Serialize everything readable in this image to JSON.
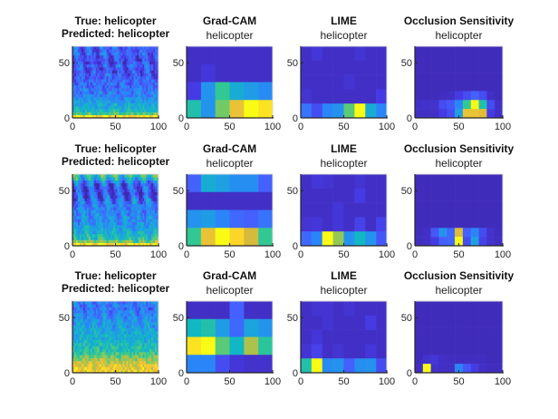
{
  "figure": {
    "rows": 3,
    "columns": [
      "Spectrogram",
      "Grad-CAM",
      "LIME",
      "Occlusion Sensitivity"
    ]
  },
  "chart_data": {
    "type": "heatmap",
    "colormap": "parula",
    "xlim": [
      0,
      100
    ],
    "ylim": [
      0,
      65
    ],
    "xticks": [
      0,
      50,
      100
    ],
    "yticks": [
      0,
      50
    ],
    "rows": [
      {
        "spectrogram": {
          "title_line1": "True: helicopter",
          "title_line2": "Predicted: helicopter",
          "profile": [
            0.92,
            0.62,
            0.5,
            0.45,
            0.42,
            0.38,
            0.33,
            0.3,
            0.28,
            0.26,
            0.24,
            0.22,
            0.2,
            0.19,
            0.18,
            0.17,
            0.18,
            0.2,
            0.15,
            0.14,
            0.16,
            0.22,
            0.18,
            0.2
          ],
          "periodic": 0.1
        },
        "gradcam": {
          "title": "Grad-CAM",
          "subtitle": "helicopter",
          "grid": [
            [
              0.05,
              0.05,
              0.05,
              0.05,
              0.05,
              0.05
            ],
            [
              0.05,
              0.08,
              0.05,
              0.05,
              0.05,
              0.05
            ],
            [
              0.1,
              0.35,
              0.6,
              0.45,
              0.38,
              0.32
            ],
            [
              0.55,
              0.35,
              0.68,
              0.85,
              1.0,
              0.95
            ]
          ]
        },
        "lime": {
          "title": "LIME",
          "subtitle": "helicopter",
          "grid": [
            [
              0.05,
              0.08,
              0.05,
              0.05,
              0.05,
              0.07,
              0.05,
              0.05
            ],
            [
              0.05,
              0.05,
              0.05,
              0.05,
              0.05,
              0.05,
              0.05,
              0.05
            ],
            [
              0.05,
              0.05,
              0.05,
              0.05,
              0.07,
              0.05,
              0.05,
              0.05
            ],
            [
              0.07,
              0.05,
              0.05,
              0.05,
              0.05,
              0.05,
              0.05,
              0.1
            ],
            [
              0.25,
              0.15,
              0.3,
              0.35,
              0.65,
              1.0,
              0.45,
              0.3
            ]
          ]
        },
        "occlusion": {
          "title": "Occlusion Sensitivity",
          "subtitle": "helicopter",
          "grid": [
            [
              0.03,
              0.03,
              0.03,
              0.03,
              0.03,
              0.03,
              0.03,
              0.03,
              0.03,
              0.03,
              0.03
            ],
            [
              0.03,
              0.03,
              0.03,
              0.03,
              0.03,
              0.03,
              0.03,
              0.03,
              0.03,
              0.03,
              0.03
            ],
            [
              0.03,
              0.03,
              0.03,
              0.03,
              0.03,
              0.03,
              0.03,
              0.03,
              0.03,
              0.03,
              0.03
            ],
            [
              0.03,
              0.03,
              0.03,
              0.03,
              0.03,
              0.03,
              0.03,
              0.03,
              0.03,
              0.03,
              0.03
            ],
            [
              0.03,
              0.03,
              0.03,
              0.03,
              0.03,
              0.03,
              0.03,
              0.03,
              0.03,
              0.03,
              0.03
            ],
            [
              0.03,
              0.03,
              0.03,
              0.04,
              0.05,
              0.1,
              0.15,
              0.2,
              0.15,
              0.05,
              0.03
            ],
            [
              0.05,
              0.06,
              0.06,
              0.15,
              0.18,
              0.3,
              0.6,
              1.0,
              0.55,
              0.15,
              0.05
            ],
            [
              0.05,
              0.05,
              0.05,
              0.1,
              0.15,
              0.4,
              0.85,
              0.85,
              0.82,
              0.1,
              0.05
            ]
          ]
        }
      },
      {
        "spectrogram": {
          "title_line1": "True: helicopter",
          "title_line2": "Predicted: helicopter",
          "profile": [
            0.95,
            0.68,
            0.55,
            0.5,
            0.45,
            0.42,
            0.38,
            0.36,
            0.34,
            0.33,
            0.32,
            0.3,
            0.3,
            0.28,
            0.26,
            0.24,
            0.18,
            0.16,
            0.15,
            0.17,
            0.2,
            0.3,
            0.45,
            0.55
          ],
          "periodic": 0.18
        },
        "gradcam": {
          "title": "Grad-CAM",
          "subtitle": "helicopter",
          "grid": [
            [
              0.2,
              0.45,
              0.4,
              0.33,
              0.33,
              0.2
            ],
            [
              0.05,
              0.05,
              0.05,
              0.05,
              0.05,
              0.05
            ],
            [
              0.35,
              0.38,
              0.3,
              0.22,
              0.2,
              0.25
            ],
            [
              0.6,
              0.85,
              1.0,
              0.92,
              0.8,
              0.6
            ]
          ]
        },
        "lime": {
          "title": "LIME",
          "subtitle": "helicopter",
          "grid": [
            [
              0.05,
              0.08,
              0.07,
              0.05,
              0.05,
              0.07,
              0.05,
              0.05
            ],
            [
              0.05,
              0.05,
              0.05,
              0.05,
              0.05,
              0.1,
              0.05,
              0.05
            ],
            [
              0.05,
              0.05,
              0.05,
              0.08,
              0.05,
              0.05,
              0.05,
              0.05
            ],
            [
              0.07,
              0.08,
              0.05,
              0.08,
              0.05,
              0.12,
              0.05,
              0.12
            ],
            [
              0.22,
              0.3,
              1.0,
              0.72,
              0.35,
              0.5,
              0.35,
              0.18
            ]
          ]
        },
        "occlusion": {
          "title": "Occlusion Sensitivity",
          "subtitle": "helicopter",
          "grid": [
            [
              0.03,
              0.03,
              0.03,
              0.03,
              0.03,
              0.03,
              0.03,
              0.03,
              0.03,
              0.03,
              0.03
            ],
            [
              0.03,
              0.03,
              0.03,
              0.03,
              0.03,
              0.03,
              0.03,
              0.03,
              0.03,
              0.03,
              0.03
            ],
            [
              0.03,
              0.03,
              0.03,
              0.03,
              0.03,
              0.03,
              0.03,
              0.03,
              0.03,
              0.03,
              0.03
            ],
            [
              0.03,
              0.03,
              0.03,
              0.03,
              0.03,
              0.03,
              0.03,
              0.03,
              0.03,
              0.03,
              0.03
            ],
            [
              0.03,
              0.03,
              0.03,
              0.03,
              0.03,
              0.03,
              0.03,
              0.03,
              0.03,
              0.03,
              0.03
            ],
            [
              0.03,
              0.03,
              0.03,
              0.03,
              0.03,
              0.03,
              0.03,
              0.03,
              0.03,
              0.03,
              0.03
            ],
            [
              0.04,
              0.05,
              0.18,
              0.35,
              0.22,
              0.82,
              0.2,
              0.3,
              0.15,
              0.06,
              0.04
            ],
            [
              0.04,
              0.05,
              0.1,
              0.2,
              0.22,
              1.0,
              0.15,
              0.4,
              0.12,
              0.06,
              0.04
            ]
          ]
        }
      },
      {
        "spectrogram": {
          "title_line1": "True: helicopter",
          "title_line2": "Predicted: helicopter",
          "profile": [
            0.88,
            0.85,
            0.82,
            0.78,
            0.72,
            0.65,
            0.6,
            0.55,
            0.52,
            0.5,
            0.48,
            0.46,
            0.45,
            0.44,
            0.42,
            0.4,
            0.38,
            0.36,
            0.34,
            0.3,
            0.28,
            0.26,
            0.27,
            0.28
          ],
          "periodic": 0.06
        },
        "gradcam": {
          "title": "Grad-CAM",
          "subtitle": "helicopter",
          "grid": [
            [
              0.05,
              0.05,
              0.05,
              0.2,
              0.05,
              0.05
            ],
            [
              0.5,
              0.55,
              0.38,
              0.22,
              0.42,
              0.35
            ],
            [
              0.95,
              1.0,
              0.65,
              0.5,
              0.75,
              0.58
            ],
            [
              0.3,
              0.3,
              0.15,
              0.08,
              0.06,
              0.06
            ]
          ]
        },
        "lime": {
          "title": "LIME",
          "subtitle": "helicopter",
          "grid": [
            [
              0.05,
              0.07,
              0.07,
              0.05,
              0.07,
              0.05,
              0.05,
              0.05
            ],
            [
              0.05,
              0.05,
              0.07,
              0.05,
              0.05,
              0.05,
              0.1,
              0.05
            ],
            [
              0.05,
              0.08,
              0.05,
              0.05,
              0.05,
              0.05,
              0.05,
              0.05
            ],
            [
              0.07,
              0.12,
              0.05,
              0.07,
              0.05,
              0.05,
              0.08,
              0.05
            ],
            [
              0.55,
              1.0,
              0.32,
              0.35,
              0.2,
              0.33,
              0.35,
              0.15
            ]
          ]
        },
        "occlusion": {
          "title": "Occlusion Sensitivity",
          "subtitle": "helicopter",
          "grid": [
            [
              0.03,
              0.03,
              0.03,
              0.03,
              0.03,
              0.03,
              0.03,
              0.03,
              0.03,
              0.03,
              0.03
            ],
            [
              0.03,
              0.03,
              0.03,
              0.03,
              0.03,
              0.03,
              0.03,
              0.03,
              0.03,
              0.03,
              0.03
            ],
            [
              0.03,
              0.03,
              0.03,
              0.03,
              0.03,
              0.03,
              0.03,
              0.03,
              0.03,
              0.03,
              0.03
            ],
            [
              0.03,
              0.03,
              0.03,
              0.03,
              0.03,
              0.03,
              0.03,
              0.03,
              0.03,
              0.03,
              0.03
            ],
            [
              0.03,
              0.03,
              0.03,
              0.03,
              0.03,
              0.03,
              0.03,
              0.03,
              0.03,
              0.03,
              0.03
            ],
            [
              0.03,
              0.03,
              0.03,
              0.03,
              0.03,
              0.03,
              0.03,
              0.03,
              0.03,
              0.03,
              0.03
            ],
            [
              0.03,
              0.06,
              0.08,
              0.05,
              0.04,
              0.04,
              0.04,
              0.04,
              0.04,
              0.03,
              0.03
            ],
            [
              0.04,
              1.0,
              0.06,
              0.05,
              0.05,
              0.3,
              0.18,
              0.1,
              0.05,
              0.04,
              0.04
            ]
          ]
        }
      }
    ]
  }
}
